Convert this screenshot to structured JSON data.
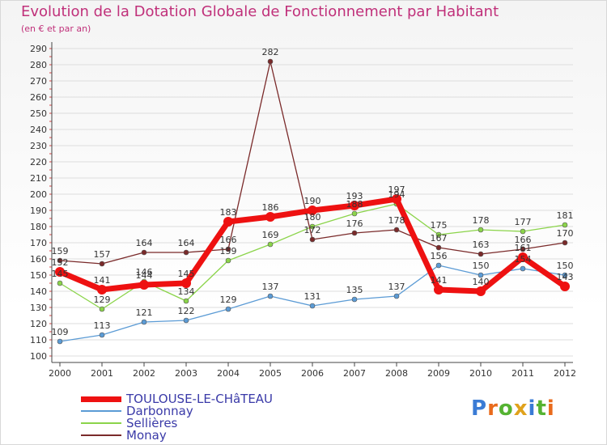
{
  "header": {
    "title": "Evolution de la Dotation Globale de Fonctionnement par Habitant",
    "subtitle": "(en € et par an)"
  },
  "logo_text": "Proxiti",
  "chart_data": {
    "type": "line",
    "title": "Evolution de la Dotation Globale de Fonctionnement par Habitant",
    "ylabel": "(en € et par an)",
    "xlabel": "",
    "x": [
      "2000",
      "2001",
      "2002",
      "2003",
      "2004",
      "2005",
      "2006",
      "2007",
      "2008",
      "2009",
      "2010",
      "2011",
      "2012"
    ],
    "ylim": [
      100,
      290
    ],
    "yticks": [
      100,
      110,
      120,
      130,
      140,
      150,
      160,
      170,
      180,
      190,
      200,
      210,
      220,
      230,
      240,
      250,
      260,
      270,
      280,
      290
    ],
    "legend_position": "bottom-left",
    "series": [
      {
        "name": "Darbonnay",
        "color": "#5b9bd5",
        "values": [
          109,
          113,
          121,
          122,
          129,
          137,
          131,
          135,
          137,
          156,
          150,
          154,
          150
        ],
        "labels": [
          "109",
          "113",
          "121",
          "122",
          "129",
          "137",
          "131",
          "135",
          "137",
          "156",
          "150",
          "154",
          "150"
        ]
      },
      {
        "name": "Sellières",
        "color": "#8bd44a",
        "values": [
          145,
          129,
          146,
          134,
          159,
          169,
          180,
          188,
          194,
          175,
          178,
          177,
          181
        ],
        "labels": [
          "145",
          "129",
          "146",
          "134",
          "159",
          "169",
          "180",
          "188",
          "194",
          "175",
          "178",
          "177",
          "181"
        ]
      },
      {
        "name": "Monay",
        "color": "#7a2a2a",
        "values": [
          159,
          157,
          164,
          164,
          166,
          282,
          172,
          176,
          178,
          167,
          163,
          166,
          170
        ],
        "labels": [
          "159",
          "157",
          "164",
          "164",
          "166",
          "282",
          "172",
          "176",
          "178",
          "167",
          "163",
          "166",
          "170"
        ]
      },
      {
        "name": "TOULOUSE-LE-CHâTEAU",
        "color": "#ee1111",
        "values": [
          152,
          141,
          144,
          145,
          183,
          186,
          190,
          193,
          197,
          141,
          140,
          161,
          143
        ],
        "labels": [
          "152",
          "141",
          "144",
          "145",
          "183",
          "186",
          "190",
          "193",
          "197",
          "141",
          "140",
          "161",
          "143"
        ]
      }
    ]
  }
}
